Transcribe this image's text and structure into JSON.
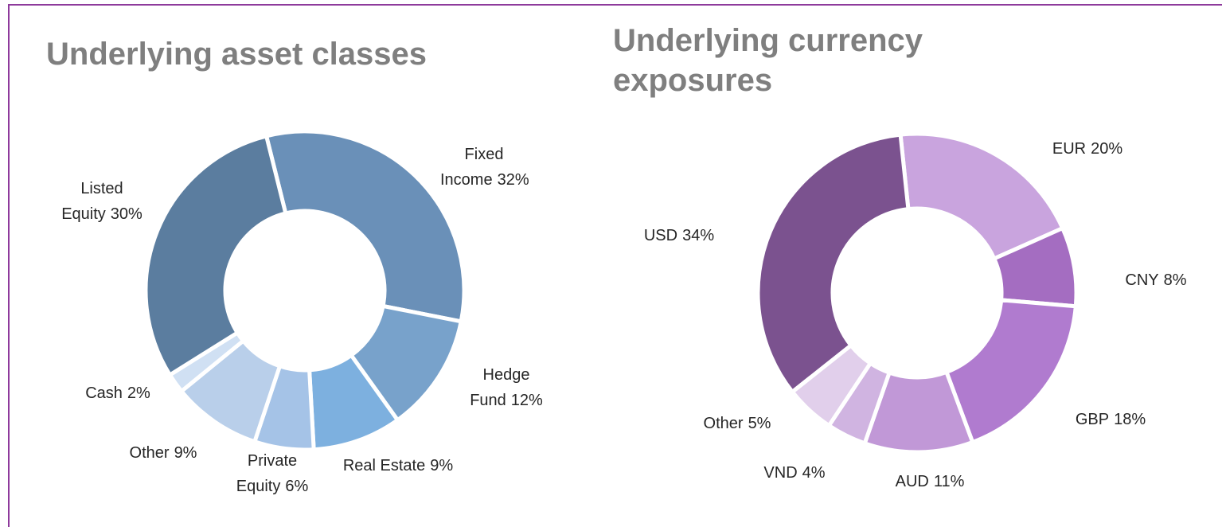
{
  "chart_data": [
    {
      "type": "pie",
      "donut": true,
      "title": "Underlying asset classes",
      "categories": [
        "Fixed Income",
        "Hedge Fund",
        "Real Estate",
        "Private Equity",
        "Other",
        "Cash",
        "Listed Equity"
      ],
      "values": [
        32,
        12,
        9,
        6,
        9,
        2,
        30
      ],
      "value_labels": [
        "32%",
        "12%",
        "9%",
        "6%",
        "9%",
        "2%",
        "30%"
      ],
      "colors": [
        "#6a90b8",
        "#78a2cb",
        "#7db0df",
        "#a5c3e7",
        "#b9cfea",
        "#d0e0f3",
        "#5b7d9f"
      ]
    },
    {
      "type": "pie",
      "donut": true,
      "title": "Underlying currency exposures",
      "categories": [
        "EUR",
        "CNY",
        "GBP",
        "AUD",
        "VND",
        "Other",
        "USD"
      ],
      "values": [
        20,
        8,
        18,
        11,
        4,
        5,
        34
      ],
      "value_labels": [
        "20%",
        "8%",
        "18%",
        "11%",
        "4%",
        "5%",
        "34%"
      ],
      "colors": [
        "#c9a4de",
        "#a46dc1",
        "#b07bcf",
        "#c198d7",
        "#d0b4e1",
        "#e1cfeb",
        "#7b528f"
      ]
    }
  ]
}
